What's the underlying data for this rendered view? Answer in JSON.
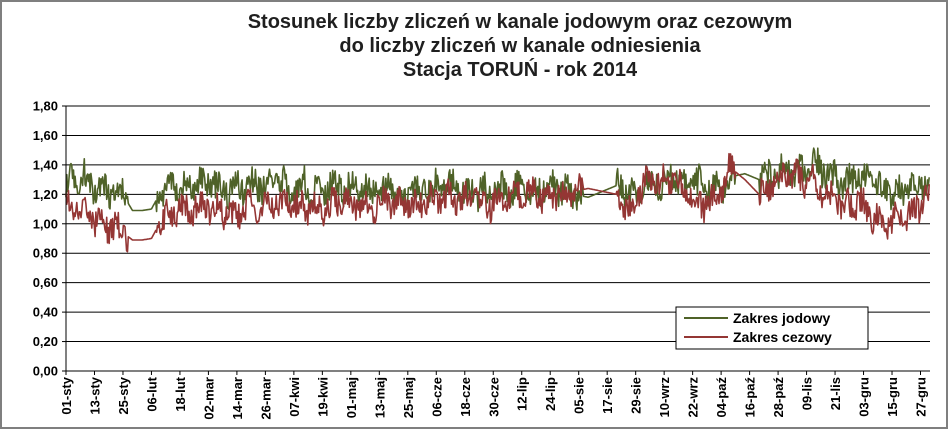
{
  "chart_data": {
    "type": "line",
    "title_lines": [
      "Stosunek liczby zliczeń w kanale jodowym oraz cezowym",
      "do liczby zliczeń w kanale odniesienia",
      "Stacja TORUŃ - rok 2014"
    ],
    "ylim": [
      0,
      1.8
    ],
    "y_ticks": [
      "0,00",
      "0,20",
      "0,40",
      "0,60",
      "0,80",
      "1,00",
      "1,20",
      "1,40",
      "1,60",
      "1,80"
    ],
    "x_ticks": [
      "01-sty",
      "13-sty",
      "25-sty",
      "06-lut",
      "18-lut",
      "02-mar",
      "14-mar",
      "26-mar",
      "07-kwi",
      "19-kwi",
      "01-maj",
      "13-maj",
      "25-maj",
      "06-cze",
      "18-cze",
      "30-cze",
      "12-lip",
      "24-lip",
      "05-sie",
      "17-sie",
      "29-sie",
      "10-wrz",
      "22-wrz",
      "04-paź",
      "16-paź",
      "28-paź",
      "09-lis",
      "21-lis",
      "03-gru",
      "15-gru",
      "27-gru"
    ],
    "grid": "horizontal",
    "legend_position": "bottom-right",
    "series": [
      {
        "name": "Zakres jodowy",
        "color": "#4f6228",
        "x": [
          0,
          6,
          12,
          18,
          24,
          28,
          32,
          36,
          40,
          46,
          52,
          58,
          64,
          70,
          76,
          82,
          88,
          94,
          100,
          106,
          112,
          118,
          124,
          130,
          136,
          142,
          148,
          154,
          160,
          166,
          172,
          178,
          184,
          190,
          196,
          202,
          208,
          214,
          220,
          226,
          232,
          238,
          244,
          250,
          256,
          262,
          268,
          274,
          280,
          286,
          292,
          298,
          304,
          310,
          316,
          322,
          328,
          334,
          340,
          346,
          352,
          358,
          364
        ],
        "y": [
          1.28,
          1.34,
          1.26,
          1.22,
          1.2,
          1.09,
          1.09,
          1.1,
          1.22,
          1.28,
          1.24,
          1.3,
          1.26,
          1.22,
          1.28,
          1.26,
          1.32,
          1.24,
          1.27,
          1.23,
          1.27,
          1.24,
          1.22,
          1.23,
          1.25,
          1.2,
          1.22,
          1.24,
          1.26,
          1.22,
          1.22,
          1.2,
          1.24,
          1.22,
          1.22,
          1.24,
          1.25,
          1.2,
          1.18,
          1.22,
          1.26,
          1.2,
          1.24,
          1.28,
          1.32,
          1.28,
          1.26,
          1.24,
          1.32,
          1.34,
          1.3,
          1.32,
          1.36,
          1.35,
          1.4,
          1.32,
          1.28,
          1.32,
          1.26,
          1.22,
          1.2,
          1.26,
          1.3
        ],
        "amplitude": 0.1
      },
      {
        "name": "Zakres cezowy",
        "color": "#943634",
        "x": [
          0,
          6,
          12,
          18,
          24,
          28,
          32,
          36,
          40,
          46,
          52,
          58,
          64,
          70,
          76,
          82,
          88,
          94,
          100,
          106,
          112,
          118,
          124,
          130,
          136,
          142,
          148,
          154,
          160,
          166,
          172,
          178,
          184,
          190,
          196,
          202,
          208,
          214,
          220,
          226,
          232,
          238,
          244,
          250,
          256,
          262,
          268,
          274,
          280,
          286,
          292,
          298,
          304,
          310,
          316,
          322,
          328,
          334,
          340,
          346,
          352,
          358,
          364
        ],
        "y": [
          1.15,
          1.1,
          1.02,
          0.98,
          0.94,
          0.89,
          0.89,
          0.9,
          1.02,
          1.08,
          1.1,
          1.12,
          1.1,
          1.04,
          1.12,
          1.1,
          1.14,
          1.12,
          1.12,
          1.1,
          1.12,
          1.14,
          1.1,
          1.12,
          1.16,
          1.12,
          1.14,
          1.16,
          1.18,
          1.16,
          1.2,
          1.12,
          1.18,
          1.2,
          1.2,
          1.18,
          1.2,
          1.22,
          1.24,
          1.22,
          1.2,
          1.08,
          1.3,
          1.28,
          1.3,
          1.22,
          1.12,
          1.2,
          1.38,
          1.3,
          1.2,
          1.28,
          1.35,
          1.3,
          1.28,
          1.18,
          1.12,
          1.15,
          1.05,
          1.0,
          1.04,
          1.1,
          1.2
        ],
        "amplitude": 0.09
      }
    ]
  }
}
